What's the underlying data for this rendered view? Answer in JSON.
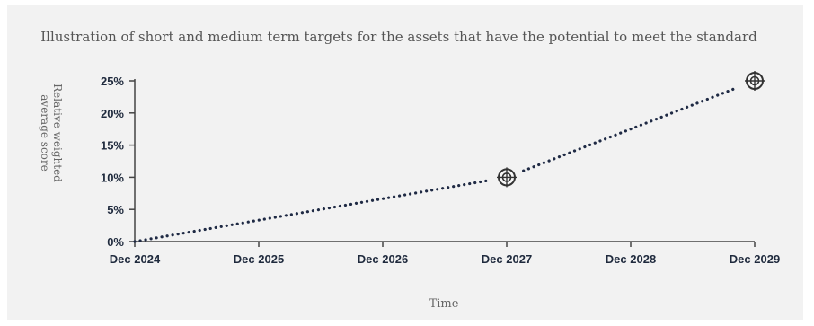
{
  "chart_data": {
    "type": "line",
    "title": "Illustration of short and medium term targets for the assets that have the potential to meet the standard",
    "xlabel": "Time",
    "ylabel_lines": [
      "Relative weighted",
      "average score"
    ],
    "x_categories": [
      "Dec 2024",
      "Dec 2025",
      "Dec 2026",
      "Dec 2027",
      "Dec 2028",
      "Dec 2029"
    ],
    "y_ticks": [
      "0%",
      "5%",
      "10%",
      "15%",
      "20%",
      "25%"
    ],
    "y_tick_values": [
      0,
      5,
      10,
      15,
      20,
      25
    ],
    "ylim": [
      0,
      25
    ],
    "line_style": "dotted",
    "grid": false,
    "series": [
      {
        "points": [
          {
            "x": "Dec 2024",
            "y": 0
          },
          {
            "x": "Dec 2027",
            "y": 10
          },
          {
            "x": "Dec 2029",
            "y": 25
          }
        ]
      }
    ],
    "target_markers": [
      {
        "x": "Dec 2027",
        "y": 10,
        "icon": "crosshair-target-icon"
      },
      {
        "x": "Dec 2029",
        "y": 25,
        "icon": "crosshair-target-icon"
      }
    ],
    "colors": {
      "line": "#1f2a44",
      "axis": "#444444",
      "background": "#f2f2f2"
    }
  }
}
